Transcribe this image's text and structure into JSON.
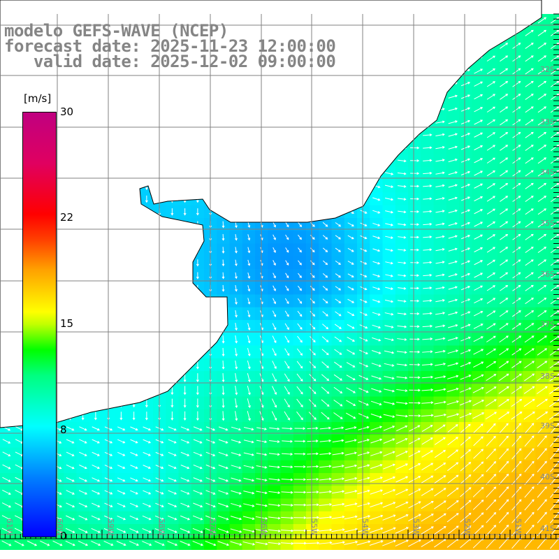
{
  "title": {
    "model": "modelo GEFS-WAVE (NCEP)",
    "forecast": "forecast date: 2025-11-23 12:00:00",
    "valid": "   valid date: 2025-12-02 09:00:00"
  },
  "colorbar": {
    "unit": "[m/s]",
    "ticks": [
      "30",
      "22",
      "15",
      "8",
      "0"
    ],
    "range": [
      0,
      30
    ]
  },
  "latitude_labels": [
    "32S",
    "33S",
    "34S",
    "35S",
    "36S",
    "37S",
    "38S",
    "39S",
    "40S",
    "41S"
  ],
  "longitude_labels": [
    "61W",
    "60W",
    "59W",
    "58W",
    "57W",
    "56W",
    "55W",
    "54W",
    "53W",
    "52W",
    "51W"
  ],
  "colors": {
    "land": "#ffffff",
    "grid": "#808080",
    "title": "#858585",
    "arrow": "#ffffff"
  }
}
